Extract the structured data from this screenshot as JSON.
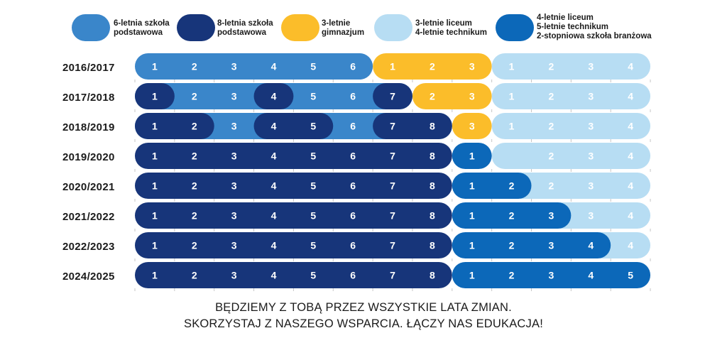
{
  "colors": {
    "primary6": "#3a86ca",
    "primary8": "#17357a",
    "gimnazjum": "#fbbd2a",
    "highschool_old": "#b7ddf3",
    "highschool_new": "#0c68b9",
    "text": "#1b1b1b"
  },
  "legend": [
    {
      "key": "primary6",
      "lines": [
        "6-letnia szkoła",
        "podstawowa"
      ]
    },
    {
      "key": "primary8",
      "lines": [
        "8-letnia szkoła",
        "podstawowa"
      ]
    },
    {
      "key": "gimnazjum",
      "lines": [
        "3-letnie",
        "gimnazjum"
      ]
    },
    {
      "key": "highschool_old",
      "lines": [
        "3-letnie liceum",
        "4-letnie technikum"
      ]
    },
    {
      "key": "highschool_new",
      "lines": [
        "4-letnie liceum",
        "5-letnie technikum",
        "2-stopniowa szkoła branżowa"
      ]
    }
  ],
  "rows": [
    {
      "year": "2016/2017",
      "segments": [
        {
          "key": "primary6",
          "from": 0,
          "to": 6,
          "labels": [
            "1",
            "2",
            "3",
            "4",
            "5",
            "6"
          ]
        },
        {
          "key": "gimnazjum",
          "from": 6,
          "to": 9,
          "labels": [
            "1",
            "2",
            "3"
          ]
        },
        {
          "key": "highschool_old",
          "from": 9,
          "to": 13,
          "labels": [
            "1",
            "2",
            "3",
            "4"
          ]
        }
      ]
    },
    {
      "year": "2017/2018",
      "segments": [
        {
          "key": "primary6",
          "from": 0,
          "to": 7,
          "labels": [
            "",
            "2",
            "3",
            "",
            "5",
            "6",
            ""
          ]
        },
        {
          "key": "primary8",
          "from": 0,
          "to": 1,
          "labels": [
            "1"
          ]
        },
        {
          "key": "primary8",
          "from": 3,
          "to": 4,
          "labels": [
            "4"
          ]
        },
        {
          "key": "gimnazjum",
          "from": 7,
          "to": 9,
          "labels": [
            "2",
            "3"
          ]
        },
        {
          "key": "primary8",
          "from": 6,
          "to": 7,
          "labels": [
            "7"
          ]
        },
        {
          "key": "highschool_old",
          "from": 9,
          "to": 13,
          "labels": [
            "1",
            "2",
            "3",
            "4"
          ]
        }
      ]
    },
    {
      "year": "2018/2019",
      "segments": [
        {
          "key": "primary6",
          "from": 0,
          "to": 8,
          "labels": [
            "",
            "",
            "3",
            "",
            "",
            "6",
            "",
            ""
          ]
        },
        {
          "key": "primary8",
          "from": 0,
          "to": 2,
          "labels": [
            "1",
            "2"
          ]
        },
        {
          "key": "primary8",
          "from": 3,
          "to": 5,
          "labels": [
            "4",
            "5"
          ]
        },
        {
          "key": "gimnazjum",
          "from": 8,
          "to": 9,
          "labels": [
            "3"
          ]
        },
        {
          "key": "primary8",
          "from": 6,
          "to": 8,
          "labels": [
            "7",
            "8"
          ]
        },
        {
          "key": "highschool_old",
          "from": 9,
          "to": 13,
          "labels": [
            "1",
            "2",
            "3",
            "4"
          ]
        }
      ]
    },
    {
      "year": "2019/2020",
      "segments": [
        {
          "key": "highschool_old",
          "from": 9,
          "to": 13,
          "labels": [
            "",
            "2",
            "3",
            "4"
          ]
        },
        {
          "key": "primary8",
          "from": 0,
          "to": 8,
          "labels": [
            "1",
            "2",
            "3",
            "4",
            "5",
            "6",
            "7",
            "8"
          ]
        },
        {
          "key": "highschool_new",
          "from": 8,
          "to": 9,
          "labels": [
            "1"
          ]
        }
      ]
    },
    {
      "year": "2020/2021",
      "segments": [
        {
          "key": "highschool_old",
          "from": 9,
          "to": 13,
          "labels": [
            "",
            "2",
            "3",
            "4"
          ]
        },
        {
          "key": "primary8",
          "from": 0,
          "to": 8,
          "labels": [
            "1",
            "2",
            "3",
            "4",
            "5",
            "6",
            "7",
            "8"
          ]
        },
        {
          "key": "highschool_new",
          "from": 8,
          "to": 10,
          "labels": [
            "1",
            "2"
          ]
        }
      ]
    },
    {
      "year": "2021/2022",
      "segments": [
        {
          "key": "highschool_old",
          "from": 9,
          "to": 13,
          "labels": [
            "",
            "",
            "3",
            "4"
          ]
        },
        {
          "key": "primary8",
          "from": 0,
          "to": 8,
          "labels": [
            "1",
            "2",
            "3",
            "4",
            "5",
            "6",
            "7",
            "8"
          ]
        },
        {
          "key": "highschool_new",
          "from": 8,
          "to": 11,
          "labels": [
            "1",
            "2",
            "3"
          ]
        }
      ]
    },
    {
      "year": "2022/2023",
      "segments": [
        {
          "key": "highschool_old",
          "from": 9,
          "to": 13,
          "labels": [
            "",
            "",
            "",
            "4"
          ]
        },
        {
          "key": "primary8",
          "from": 0,
          "to": 8,
          "labels": [
            "1",
            "2",
            "3",
            "4",
            "5",
            "6",
            "7",
            "8"
          ]
        },
        {
          "key": "highschool_new",
          "from": 8,
          "to": 12,
          "labels": [
            "1",
            "2",
            "3",
            "4"
          ]
        }
      ]
    },
    {
      "year": "2024/2025",
      "segments": [
        {
          "key": "primary8",
          "from": 0,
          "to": 8,
          "labels": [
            "1",
            "2",
            "3",
            "4",
            "5",
            "6",
            "7",
            "8"
          ]
        },
        {
          "key": "highschool_new",
          "from": 8,
          "to": 13,
          "labels": [
            "1",
            "2",
            "3",
            "4",
            "5"
          ]
        }
      ]
    }
  ],
  "footer": {
    "line1": "BĘDZIEMY Z TOBĄ PRZEZ WSZYSTKIE LATA ZMIAN.",
    "line2": "SKORZYSTAJ Z NASZEGO WSPARCIA. ŁĄCZY NAS EDUKACJA!"
  }
}
